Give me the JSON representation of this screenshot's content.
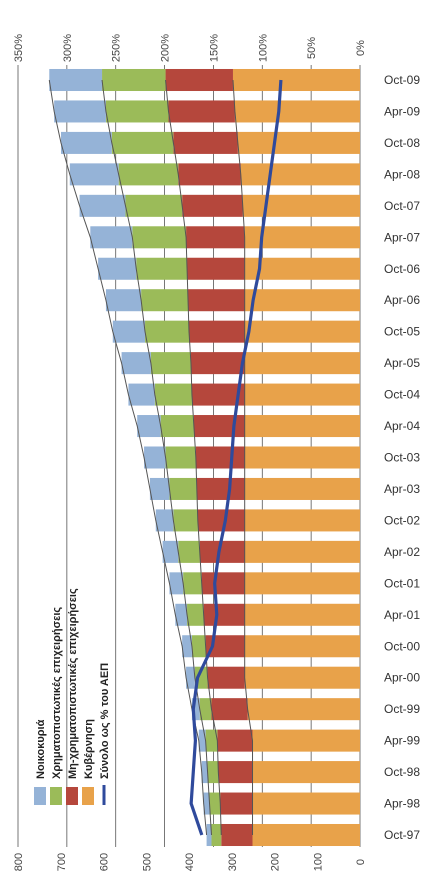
{
  "chart_data": {
    "type": "bar",
    "orientation": "horizontal",
    "stacked": true,
    "categories": [
      "Oct-97",
      "Apr-98",
      "Oct-98",
      "Apr-99",
      "Oct-99",
      "Apr-00",
      "Oct-00",
      "Apr-01",
      "Oct-01",
      "Apr-02",
      "Oct-02",
      "Apr-03",
      "Oct-03",
      "Apr-04",
      "Oct-04",
      "Apr-05",
      "Oct-05",
      "Apr-06",
      "Oct-06",
      "Apr-07",
      "Oct-07",
      "Apr-08",
      "Oct-08",
      "Apr-09",
      "Oct-09"
    ],
    "legend_position": "left",
    "grid": true,
    "series": [
      {
        "name": "Κυβέρνηση",
        "color": "#e8a24a",
        "axis": "stack",
        "values": [
          110,
          110,
          110,
          110,
          115,
          118,
          118,
          118,
          118,
          118,
          118,
          118,
          118,
          118,
          118,
          118,
          118,
          118,
          118,
          118,
          120,
          122,
          125,
          128,
          130
        ]
      },
      {
        "name": "Μη-χρηματοπιστωτικές επιχειρήσεις",
        "color": "#b5473c",
        "axis": "stack",
        "values": [
          32,
          33,
          35,
          36,
          37,
          38,
          40,
          42,
          44,
          46,
          48,
          49,
          50,
          52,
          54,
          55,
          57,
          58,
          59,
          60,
          62,
          64,
          66,
          68,
          69
        ]
      },
      {
        "name": "Χρηματοπιστωτικές επιχειρήσεις",
        "color": "#9bbb59",
        "axis": "stack",
        "values": [
          10,
          11,
          11,
          12,
          12,
          13,
          14,
          17,
          19,
          22,
          25,
          28,
          31,
          34,
          38,
          41,
          45,
          48,
          52,
          55,
          58,
          61,
          63,
          64,
          65
        ]
      },
      {
        "name": "Νοικοκυριά",
        "color": "#95b3d7",
        "axis": "stack",
        "values": [
          5,
          6,
          6,
          7,
          8,
          9,
          10,
          12,
          14,
          16,
          18,
          20,
          22,
          24,
          27,
          30,
          33,
          36,
          39,
          43,
          47,
          50,
          52,
          53,
          54
        ]
      },
      {
        "name": "Σύνολο ως % του ΑΕΠ",
        "color": "#2f4a9c",
        "axis": "secondary",
        "values": [
          370,
          395,
          390,
          385,
          390,
          380,
          345,
          335,
          340,
          330,
          315,
          305,
          300,
          295,
          285,
          275,
          260,
          250,
          235,
          230,
          220,
          210,
          200,
          190,
          185
        ]
      }
    ],
    "stack_axis": {
      "ticks": [
        "0%",
        "50%",
        "100%",
        "150%",
        "200%",
        "250%",
        "300%",
        "350%"
      ],
      "range": [
        0,
        350
      ]
    },
    "secondary_axis": {
      "ticks": [
        "0",
        "100",
        "200",
        "300",
        "400",
        "500",
        "600",
        "700",
        "800"
      ],
      "range": [
        0,
        800
      ]
    }
  }
}
